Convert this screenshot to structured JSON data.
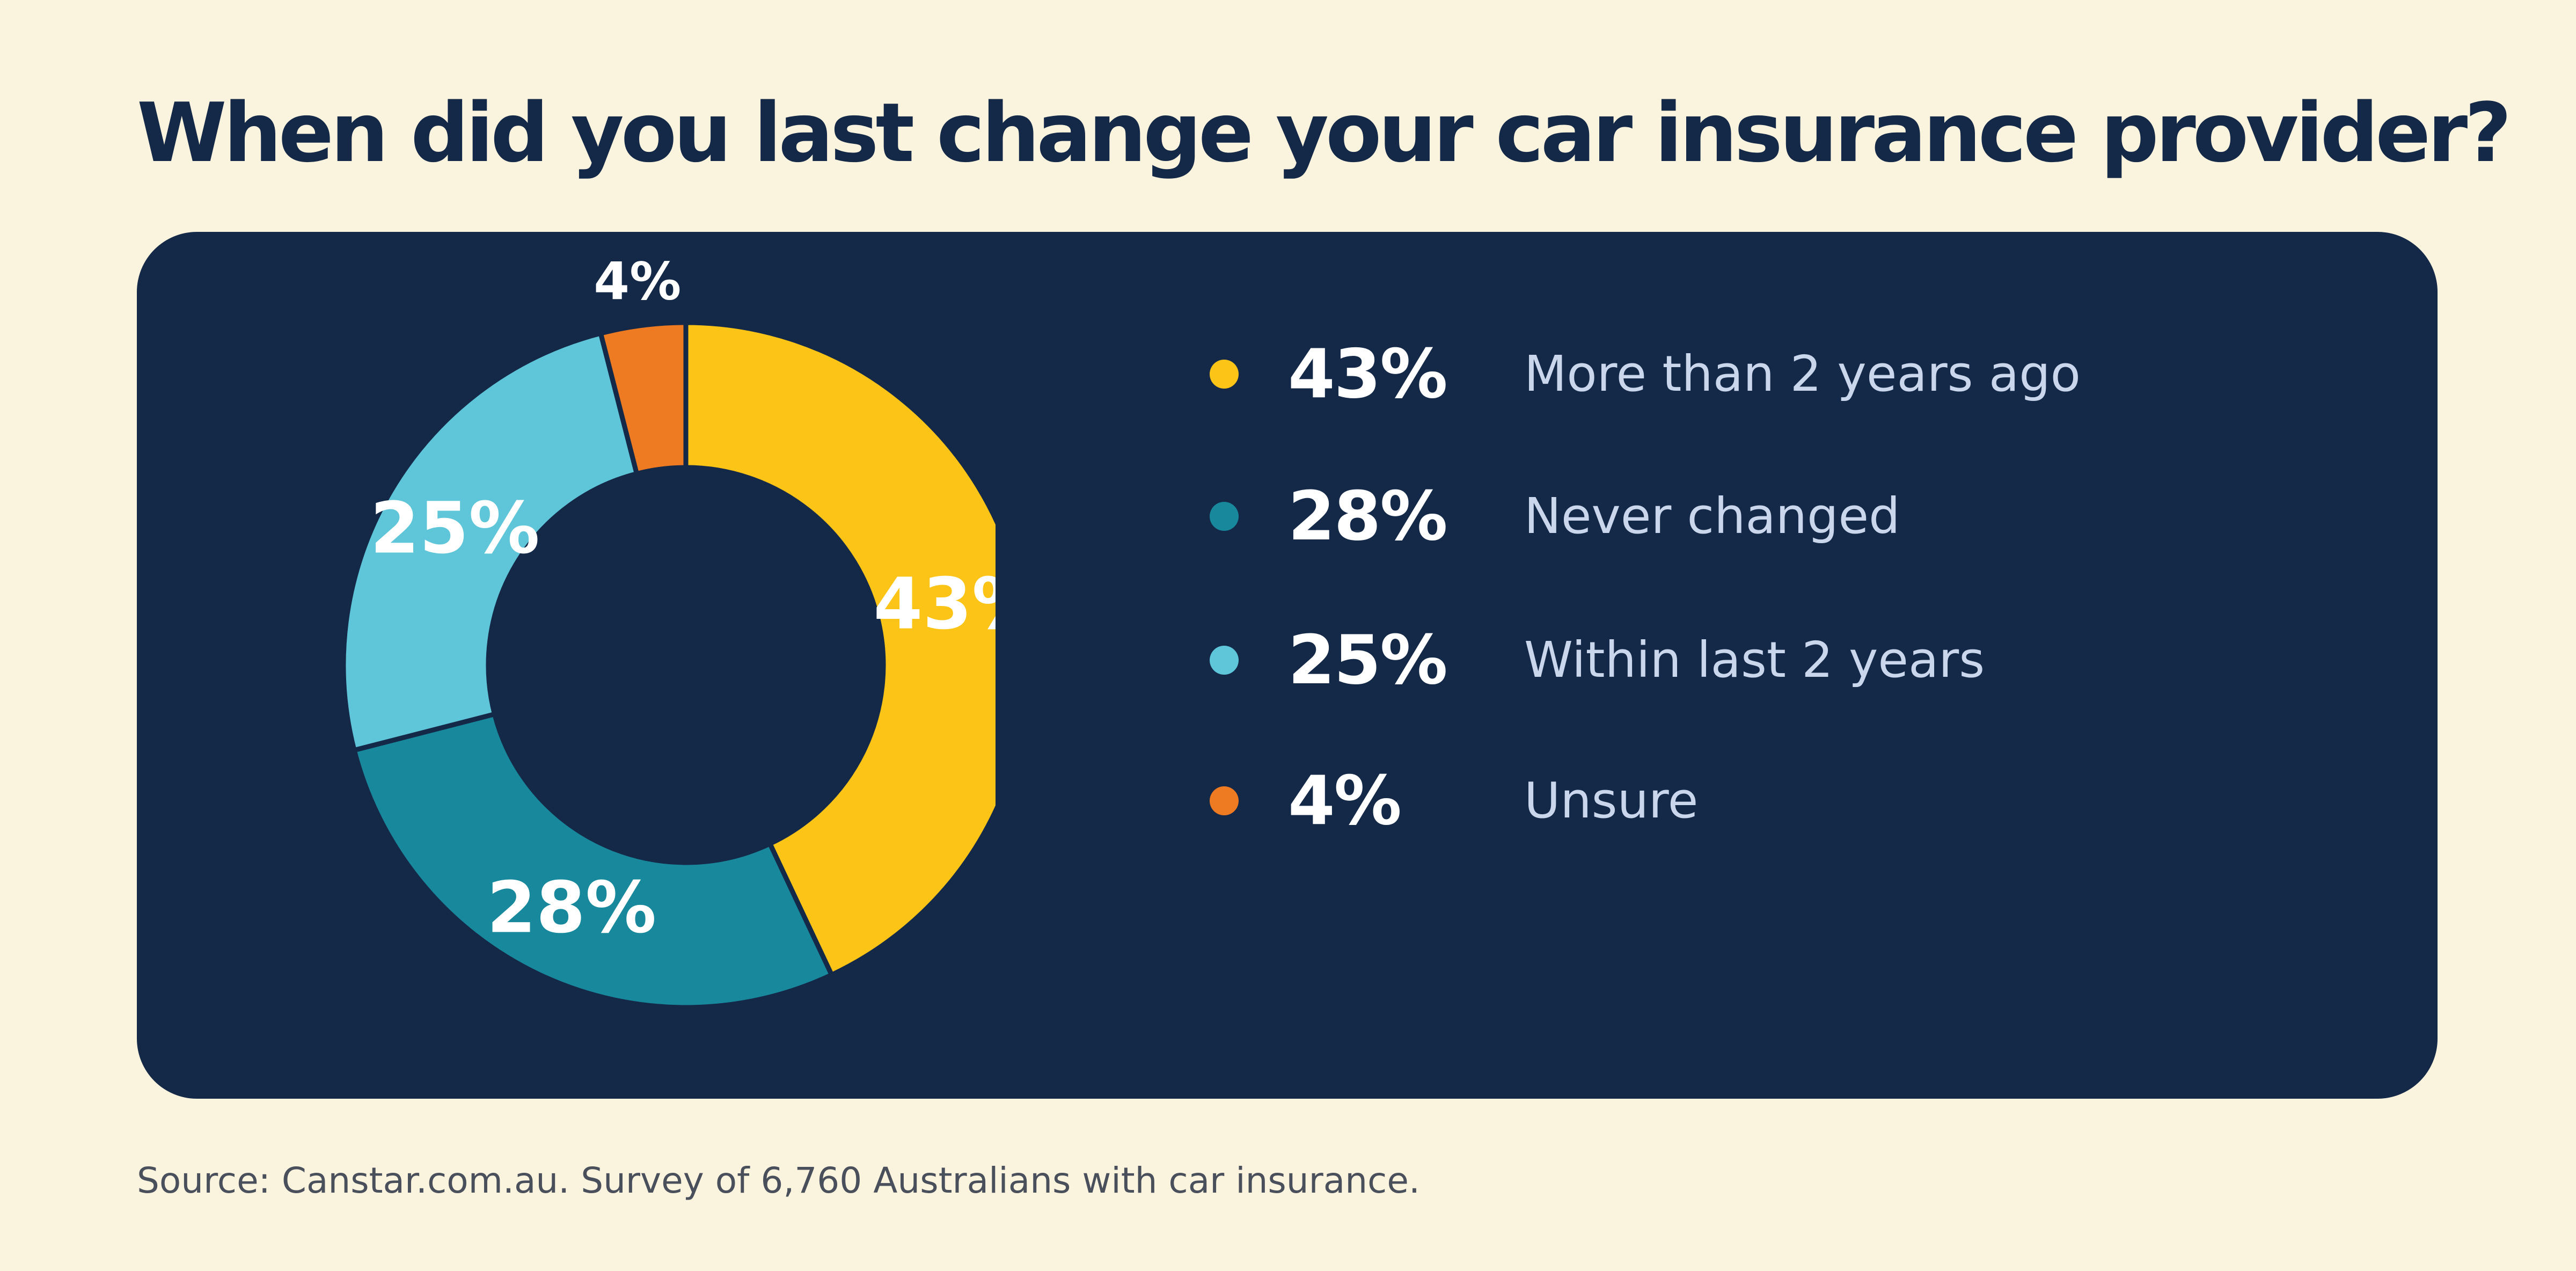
{
  "chart_data": {
    "type": "pie",
    "title": "When did you last change your car insurance provider?",
    "categories": [
      "More than 2 years ago",
      "Never changed",
      "Within last 2 years",
      "Unsure"
    ],
    "values": [
      43,
      28,
      25,
      4
    ],
    "value_labels": [
      "43%",
      "28%",
      "25%",
      "4%"
    ],
    "colors": [
      "#fbc416",
      "#18899c",
      "#5ec6d8",
      "#ee7a21"
    ],
    "donut": true,
    "legend": "right"
  },
  "source": "Source: Canstar.com.au. Survey of 6,760 Australians with car insurance."
}
